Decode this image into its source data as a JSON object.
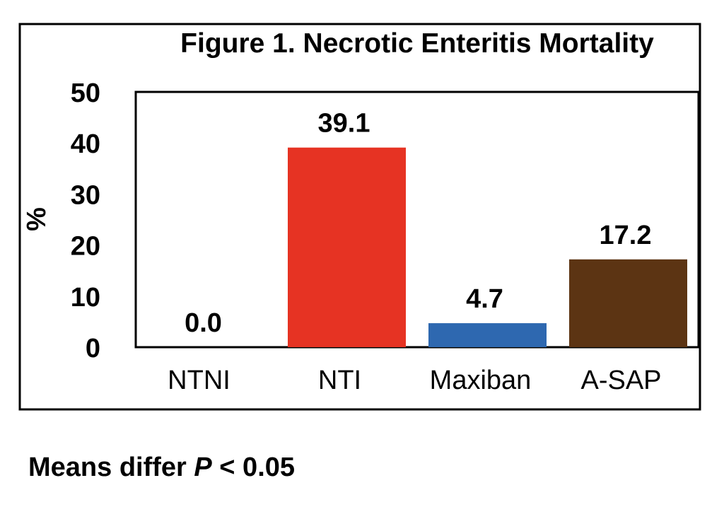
{
  "chart_data": {
    "type": "bar",
    "title": "Figure 1. Necrotic Enteritis Mortality",
    "xlabel": "",
    "ylabel": "%",
    "ylim": [
      0,
      50
    ],
    "yticks": [
      "0",
      "10",
      "20",
      "30",
      "40",
      "50"
    ],
    "categories": [
      "NTNI",
      "NTI",
      "Maxiban",
      "A-SAP"
    ],
    "values": [
      0.0,
      39.1,
      4.7,
      17.2
    ],
    "value_labels": [
      "0.0",
      "39.1",
      "4.7",
      "17.2"
    ],
    "colors": [
      "#e8e8e8",
      "#e63323",
      "#2e68b0",
      "#5c3413"
    ],
    "grid": false,
    "legend": "none"
  },
  "footnote": {
    "prefix": "Means differ ",
    "italic": "P",
    "suffix": " < 0.05"
  }
}
